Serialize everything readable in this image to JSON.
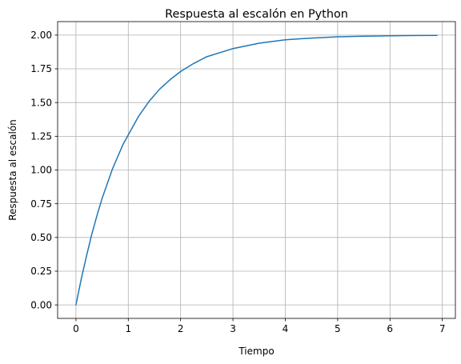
{
  "chart_data": {
    "type": "line",
    "title": "Respuesta al escalón en Python",
    "xlabel": "Tiempo",
    "ylabel": "Respuesta al escalón",
    "xlim": [
      -0.35,
      7.25
    ],
    "ylim": [
      -0.1,
      2.1
    ],
    "xticks": [
      0,
      1,
      2,
      3,
      4,
      5,
      6,
      7
    ],
    "xtick_labels": [
      "0",
      "1",
      "2",
      "3",
      "4",
      "5",
      "6",
      "7"
    ],
    "yticks": [
      0,
      0.25,
      0.5,
      0.75,
      1,
      1.25,
      1.5,
      1.75,
      2
    ],
    "ytick_labels": [
      "0.00",
      "0.25",
      "0.50",
      "0.75",
      "1.00",
      "1.25",
      "1.50",
      "1.75",
      "2.00"
    ],
    "grid": true,
    "colors": {
      "line": "#1f77b4"
    },
    "series": [
      {
        "x": [
          0,
          0.1,
          0.2,
          0.3,
          0.4,
          0.5,
          0.6,
          0.7,
          0.8,
          0.9,
          1.0,
          1.2,
          1.4,
          1.6,
          1.8,
          2.0,
          2.25,
          2.5,
          2.75,
          3.0,
          3.5,
          4.0,
          4.5,
          5.0,
          5.5,
          6.0,
          6.5,
          6.9
        ],
        "y": [
          0,
          0.19,
          0.36,
          0.52,
          0.66,
          0.79,
          0.9,
          1.01,
          1.1,
          1.19,
          1.26,
          1.4,
          1.51,
          1.6,
          1.67,
          1.73,
          1.79,
          1.84,
          1.87,
          1.9,
          1.94,
          1.965,
          1.978,
          1.987,
          1.992,
          1.995,
          1.997,
          1.998
        ]
      }
    ]
  }
}
